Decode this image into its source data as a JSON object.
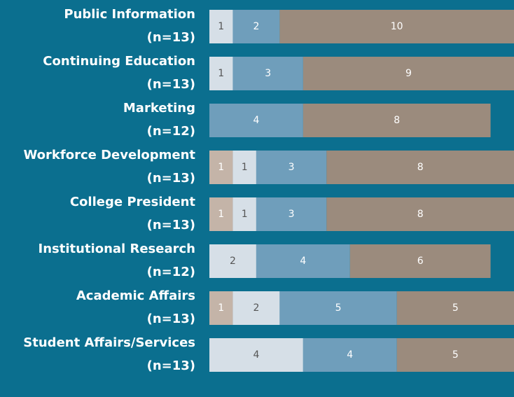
{
  "chart_data": {
    "type": "stacked-barh",
    "categories": [
      [
        "Public Information",
        "(n=13)"
      ],
      [
        "Continuing Education",
        "(n=13)"
      ],
      [
        "Marketing",
        "(n=12)"
      ],
      [
        "Workforce Development",
        "(n=13)"
      ],
      [
        "College President",
        "(n=13)"
      ],
      [
        "Institutional Research",
        "(n=12)"
      ],
      [
        "Academic Affairs",
        "(n=13)"
      ],
      [
        "Student Affairs/Services",
        "(n=13)"
      ]
    ],
    "series": [
      {
        "color": "#c4b4a8",
        "values": [
          0,
          0,
          0,
          1,
          1,
          0,
          1,
          0
        ]
      },
      {
        "color": "#d6dfe7",
        "values": [
          1,
          1,
          0,
          1,
          1,
          2,
          2,
          4
        ]
      },
      {
        "color": "#6f9ebb",
        "values": [
          2,
          3,
          4,
          3,
          3,
          4,
          5,
          4
        ]
      },
      {
        "color": "#9b8b7d",
        "values": [
          10,
          9,
          8,
          8,
          8,
          6,
          5,
          5
        ]
      }
    ],
    "xlim": [
      0,
      13
    ]
  }
}
